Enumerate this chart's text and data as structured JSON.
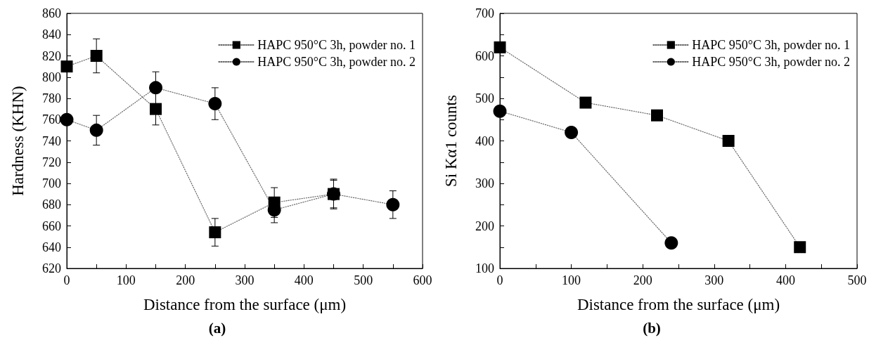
{
  "chart_data": [
    {
      "type": "line",
      "xlabel": "Distance from the surface (μm)",
      "ylabel": "Hardness (KHN)",
      "annotations": [
        "(a)"
      ],
      "xlim": [
        0,
        600
      ],
      "xticks": [
        0,
        {
          "value": 50,
          "label": null
        },
        100,
        {
          "value": 150,
          "label": null
        },
        200,
        {
          "value": 250,
          "label": null
        },
        300,
        {
          "value": 350,
          "label": null
        },
        400,
        {
          "value": 450,
          "label": null
        },
        500,
        {
          "value": 550,
          "label": null
        },
        600
      ],
      "ylim": [
        620,
        860
      ],
      "yticks": [
        620,
        640,
        660,
        680,
        700,
        720,
        740,
        760,
        780,
        800,
        820,
        840,
        860
      ],
      "legend": "top right",
      "grid": false,
      "line_style": "dotted",
      "series": [
        {
          "name": "HAPC 950°C 3h, powder no. 1",
          "color": "#000000",
          "marker": "square",
          "x": [
            0,
            50,
            150,
            250,
            350,
            450
          ],
          "values": [
            810,
            820,
            770,
            654,
            682,
            690
          ],
          "errors": [
            null,
            16,
            15,
            13,
            14,
            13
          ]
        },
        {
          "name": "HAPC 950°C 3h, powder no. 2",
          "color": "#000000",
          "marker": "circle",
          "x": [
            0,
            50,
            150,
            250,
            350,
            450,
            550
          ],
          "values": [
            760,
            750,
            790,
            775,
            675,
            690,
            680
          ],
          "errors": [
            null,
            14,
            15,
            15,
            12,
            14,
            13
          ]
        }
      ]
    },
    {
      "type": "line",
      "xlabel": "Distance from the surface (μm)",
      "ylabel": "Si Kα1 counts",
      "annotations": [
        "(b)"
      ],
      "xlim": [
        0,
        500
      ],
      "xticks": [
        0,
        {
          "value": 50,
          "label": null
        },
        100,
        {
          "value": 150,
          "label": null
        },
        200,
        {
          "value": 250,
          "label": null
        },
        300,
        {
          "value": 350,
          "label": null
        },
        400,
        {
          "value": 450,
          "label": null
        },
        500
      ],
      "ylim": [
        100,
        700
      ],
      "yticks": [
        100,
        {
          "value": 150,
          "label": null
        },
        200,
        {
          "value": 250,
          "label": null
        },
        300,
        {
          "value": 350,
          "label": null
        },
        400,
        {
          "value": 450,
          "label": null
        },
        500,
        {
          "value": 550,
          "label": null
        },
        600,
        {
          "value": 650,
          "label": null
        },
        700
      ],
      "legend": "top right",
      "grid": false,
      "line_style": "dotted",
      "series": [
        {
          "name": "HAPC 950°C 3h, powder no. 1",
          "color": "#000000",
          "marker": "square",
          "x": [
            0,
            120,
            220,
            320,
            420
          ],
          "values": [
            620,
            490,
            460,
            400,
            150
          ]
        },
        {
          "name": "HAPC 950°C 3h, powder no. 2",
          "color": "#000000",
          "marker": "circle",
          "x": [
            0,
            100,
            240
          ],
          "values": [
            470,
            420,
            160
          ]
        }
      ]
    }
  ]
}
